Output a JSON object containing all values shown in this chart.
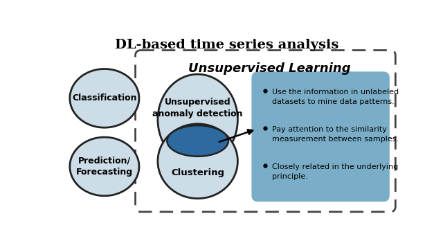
{
  "title": "DL-based time series analysis",
  "unsupervised_label": "Unsupervised Learning",
  "classification_label": "Classification",
  "prediction_label": "Prediction/\nForecasting",
  "anomaly_label": "Unsupervised\nanomalу detection",
  "clustering_label": "Clustering",
  "bullet_points": [
    "Use the information in unlabeled\ndatasets to mine data patterns.",
    "Pay attention to the similarity\nmeasurement between samples.",
    "Closely related in the underlying\nprinciple."
  ],
  "bg_color": "#ffffff",
  "light_blue": "#ccdde8",
  "dark_blue": "#2d6a9f",
  "box_blue": "#7aaec8",
  "ellipse_stroke": "#222222",
  "title_fontsize": 14,
  "unsup_fontsize": 13,
  "label_fontsize": 9
}
